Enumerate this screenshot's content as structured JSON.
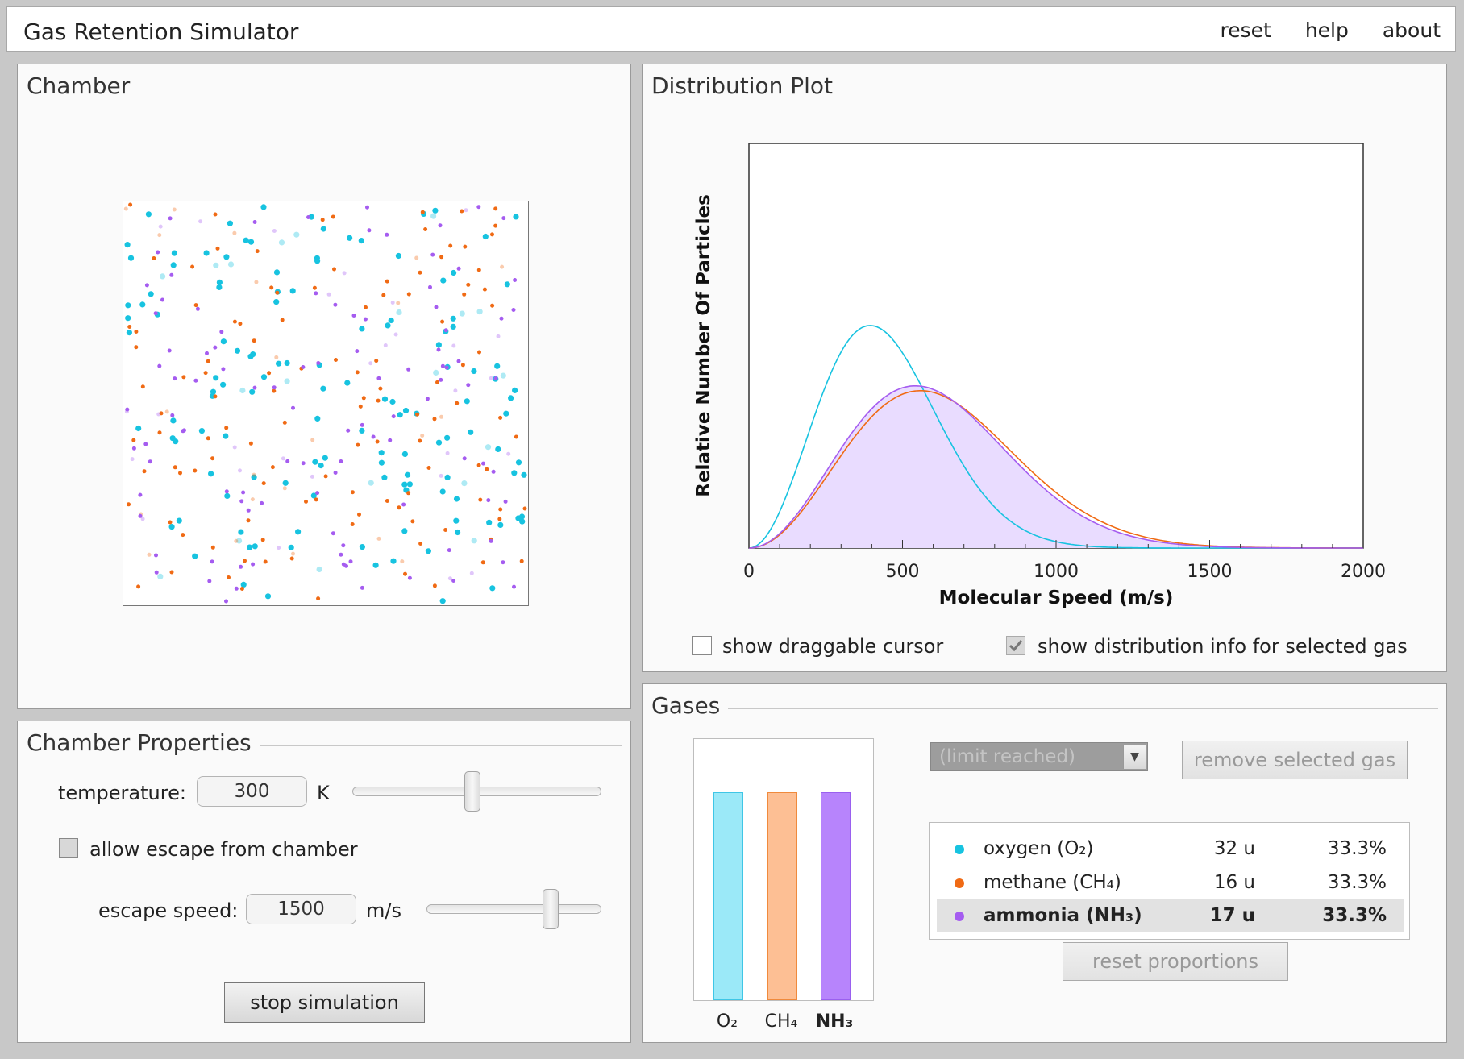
{
  "app": {
    "title": "Gas Retention Simulator",
    "menu": [
      "reset",
      "help",
      "about"
    ]
  },
  "chamber": {
    "title": "Chamber",
    "particle_colors": {
      "oxygen": "#17c3e0",
      "methane": "#f06a14",
      "ammonia": "#a55cf0"
    }
  },
  "chamber_properties": {
    "title": "Chamber Properties",
    "temperature_label": "temperature:",
    "temperature_value": "300",
    "temperature_unit": "K",
    "temperature_slider_level": 0.48,
    "escape_checkbox_label": "allow escape from chamber",
    "escape_checked": false,
    "escape_speed_label": "escape speed:",
    "escape_speed_value": "1500",
    "escape_speed_unit": "m/s",
    "escape_slider_level": 0.73,
    "stop_button_label": "stop simulation"
  },
  "distribution_plot": {
    "title": "Distribution Plot",
    "cursor_checkbox_label": "show draggable cursor",
    "cursor_checked": false,
    "info_checkbox_label": "show distribution info for selected gas",
    "info_checked": true
  },
  "chart_data": {
    "type": "line",
    "xlabel": "Molecular Speed (m/s)",
    "ylabel": "Relative Number Of Particles",
    "xlim": [
      0,
      2000
    ],
    "x_ticks": [
      "0",
      "500",
      "1000",
      "1500",
      "2000"
    ],
    "grid": false,
    "series": [
      {
        "name": "oxygen (O₂)",
        "mass": 32,
        "color": "#17c3e0",
        "filled": false
      },
      {
        "name": "methane (CH₄)",
        "mass": 16,
        "color": "#f06a14",
        "filled": false
      },
      {
        "name": "ammonia (NH₃)",
        "mass": 17,
        "color": "#a55cf0",
        "filled": true,
        "fill_color": "#e9dcff"
      }
    ]
  },
  "gases": {
    "title": "Gases",
    "dropdown_value": "(limit reached)",
    "remove_button_label": "remove selected gas",
    "reset_button_label": "reset proportions",
    "bars": [
      {
        "label": "O₂",
        "level": 1.0,
        "fill": "#9be9f8",
        "stroke": "#3fc6e6"
      },
      {
        "label": "CH₄",
        "level": 1.0,
        "fill": "#fdbf94",
        "stroke": "#f08a3c"
      },
      {
        "label": "NH₃",
        "level": 1.0,
        "fill": "#b784fc",
        "stroke": "#9a60ef"
      }
    ],
    "list": [
      {
        "name": "oxygen (O₂)",
        "mass": "32 u",
        "percent": "33.3%",
        "color": "#17c3e0"
      },
      {
        "name": "methane (CH₄)",
        "mass": "16 u",
        "percent": "33.3%",
        "color": "#f06a14"
      },
      {
        "name": "ammonia (NH₃)",
        "mass": "17 u",
        "percent": "33.3%",
        "color": "#a55cf0"
      }
    ]
  }
}
